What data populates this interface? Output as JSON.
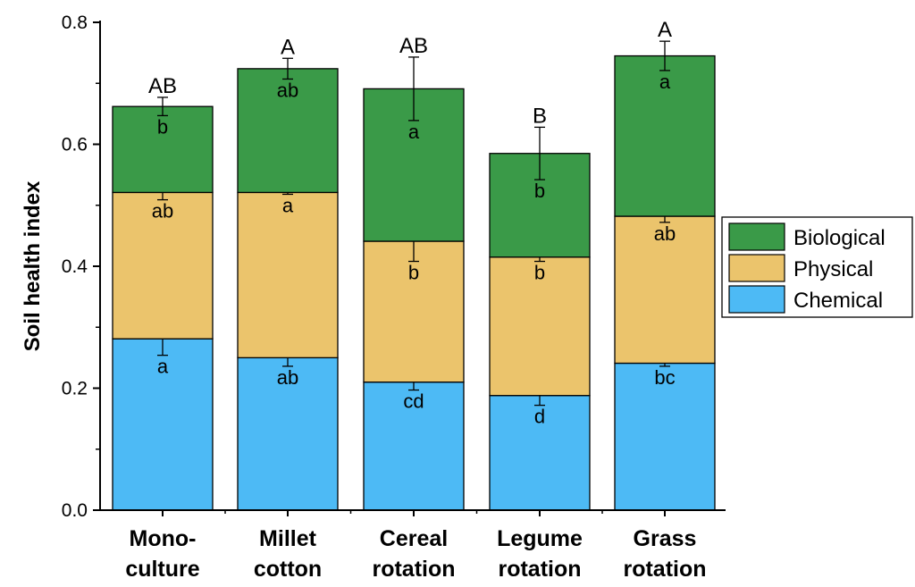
{
  "chart_data": {
    "type": "bar",
    "stacked": true,
    "ylabel": "Soil health index",
    "xlabel": "",
    "ylim": [
      0,
      0.8
    ],
    "yticks": [
      "0.0",
      "0.2",
      "0.4",
      "0.6",
      "0.8"
    ],
    "categories": [
      [
        "Mono-",
        "culture"
      ],
      [
        "Millet",
        "cotton"
      ],
      [
        "Cereal",
        "rotation"
      ],
      [
        "Legume",
        "rotation"
      ],
      [
        "Grass",
        "rotation"
      ]
    ],
    "series": [
      {
        "name": "Chemical",
        "color": "#4dbaf5",
        "values": [
          0.281,
          0.25,
          0.21,
          0.188,
          0.241
        ],
        "errors": [
          0.027,
          0.014,
          0.013,
          0.016,
          0.005
        ],
        "letters": [
          "a",
          "ab",
          "cd",
          "d",
          "bc"
        ]
      },
      {
        "name": "Physical",
        "color": "#ebc46c",
        "values": [
          0.24,
          0.271,
          0.231,
          0.227,
          0.241
        ],
        "errors": [
          0.012,
          0.003,
          0.033,
          0.007,
          0.01
        ],
        "letters": [
          "ab",
          "a",
          "b",
          "b",
          "ab"
        ]
      },
      {
        "name": "Biological",
        "color": "#3a9a48",
        "values": [
          0.141,
          0.203,
          0.25,
          0.17,
          0.263
        ],
        "errors": [
          0.015,
          0.017,
          0.052,
          0.043,
          0.024
        ],
        "letters": [
          "b",
          "ab",
          "a",
          "b",
          "a"
        ]
      }
    ],
    "total_letters": [
      "AB",
      "A",
      "AB",
      "B",
      "A"
    ],
    "legend": {
      "position": "right",
      "order": [
        "Biological",
        "Physical",
        "Chemical"
      ]
    },
    "grid": false
  }
}
